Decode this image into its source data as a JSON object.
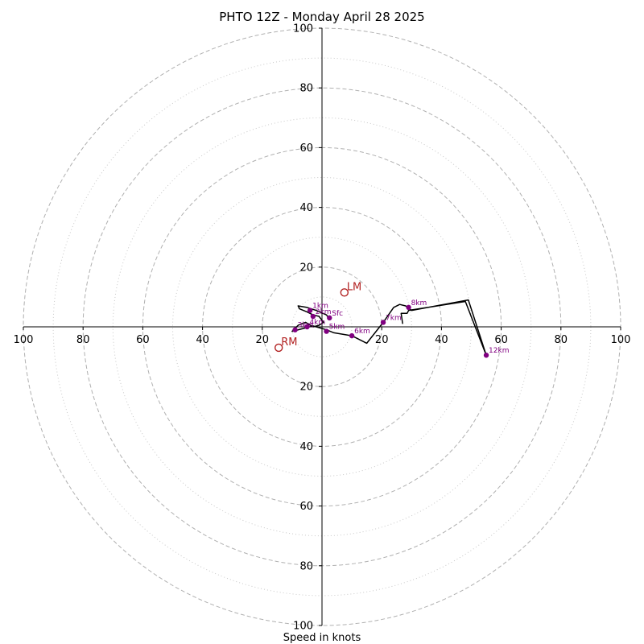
{
  "chart_data": {
    "type": "hodograph",
    "title": "PHTO 12Z - Monday April 28 2025",
    "xlabel": "Speed in knots",
    "range": 100,
    "rings_major": [
      20,
      40,
      60,
      80,
      100
    ],
    "rings_minor": [
      10,
      30,
      50,
      70,
      90
    ],
    "x_tick_labels": [
      "100",
      "80",
      "60",
      "40",
      "20",
      "20",
      "40",
      "60",
      "80",
      "100"
    ],
    "x_tick_values": [
      -100,
      -80,
      -60,
      -40,
      -20,
      20,
      40,
      60,
      80,
      100
    ],
    "y_tick_labels": [
      "100",
      "80",
      "60",
      "40",
      "20",
      "20",
      "40",
      "60",
      "80",
      "100"
    ],
    "y_tick_values": [
      100,
      80,
      60,
      40,
      20,
      -20,
      -40,
      -60,
      -80,
      -100
    ],
    "trace": [
      [
        2.5,
        2.5
      ],
      [
        1.5,
        4
      ],
      [
        -2,
        5.5
      ],
      [
        -5,
        6.5
      ],
      [
        -8,
        7
      ],
      [
        -7.5,
        6
      ],
      [
        -5,
        5
      ],
      [
        -3,
        4
      ],
      [
        -1,
        3.5
      ],
      [
        0.5,
        1.5
      ],
      [
        -1,
        0.5
      ],
      [
        -3,
        0
      ],
      [
        -5.5,
        1.5
      ],
      [
        -8,
        0.5
      ],
      [
        -10,
        -1.5
      ],
      [
        -3,
        0.3
      ],
      [
        1.5,
        -1
      ],
      [
        4,
        -2
      ],
      [
        10,
        -3
      ],
      [
        15,
        -5.5
      ],
      [
        20.5,
        1.5
      ],
      [
        24,
        6.5
      ],
      [
        26,
        7.5
      ],
      [
        28,
        7
      ],
      [
        30,
        5.5
      ],
      [
        49,
        9
      ],
      [
        55,
        -9.5
      ],
      [
        48,
        8.5
      ],
      [
        29,
        5.5
      ],
      [
        28.5,
        4.5
      ],
      [
        26.5,
        4.5
      ],
      [
        27,
        1
      ]
    ],
    "levels": [
      {
        "label": "Sfc",
        "u": 2.5,
        "v": 3
      },
      {
        "label": "1km",
        "u": -4,
        "v": 5.5
      },
      {
        "label": "2km",
        "u": -3,
        "v": 3.5
      },
      {
        "label": "3km",
        "u": -9,
        "v": -1
      },
      {
        "label": "4km",
        "u": -5,
        "v": 0
      },
      {
        "label": "5km",
        "u": 1.5,
        "v": -1.5
      },
      {
        "label": "6km",
        "u": 10,
        "v": -3
      },
      {
        "label": "7km",
        "u": 20.5,
        "v": 1.5
      },
      {
        "label": "8km",
        "u": 29,
        "v": 6.5
      },
      {
        "label": "12km",
        "u": 55,
        "v": -9.5
      }
    ],
    "storm_motion": [
      {
        "label": "LM",
        "u": 7.5,
        "v": 11.5
      },
      {
        "label": "RM",
        "u": -14.5,
        "v": -7
      }
    ],
    "colors": {
      "trace": "#000000",
      "levels": "#800080",
      "storm_motion": "#b22222",
      "grid": "#b0b0b0",
      "axes": "#000000"
    }
  }
}
